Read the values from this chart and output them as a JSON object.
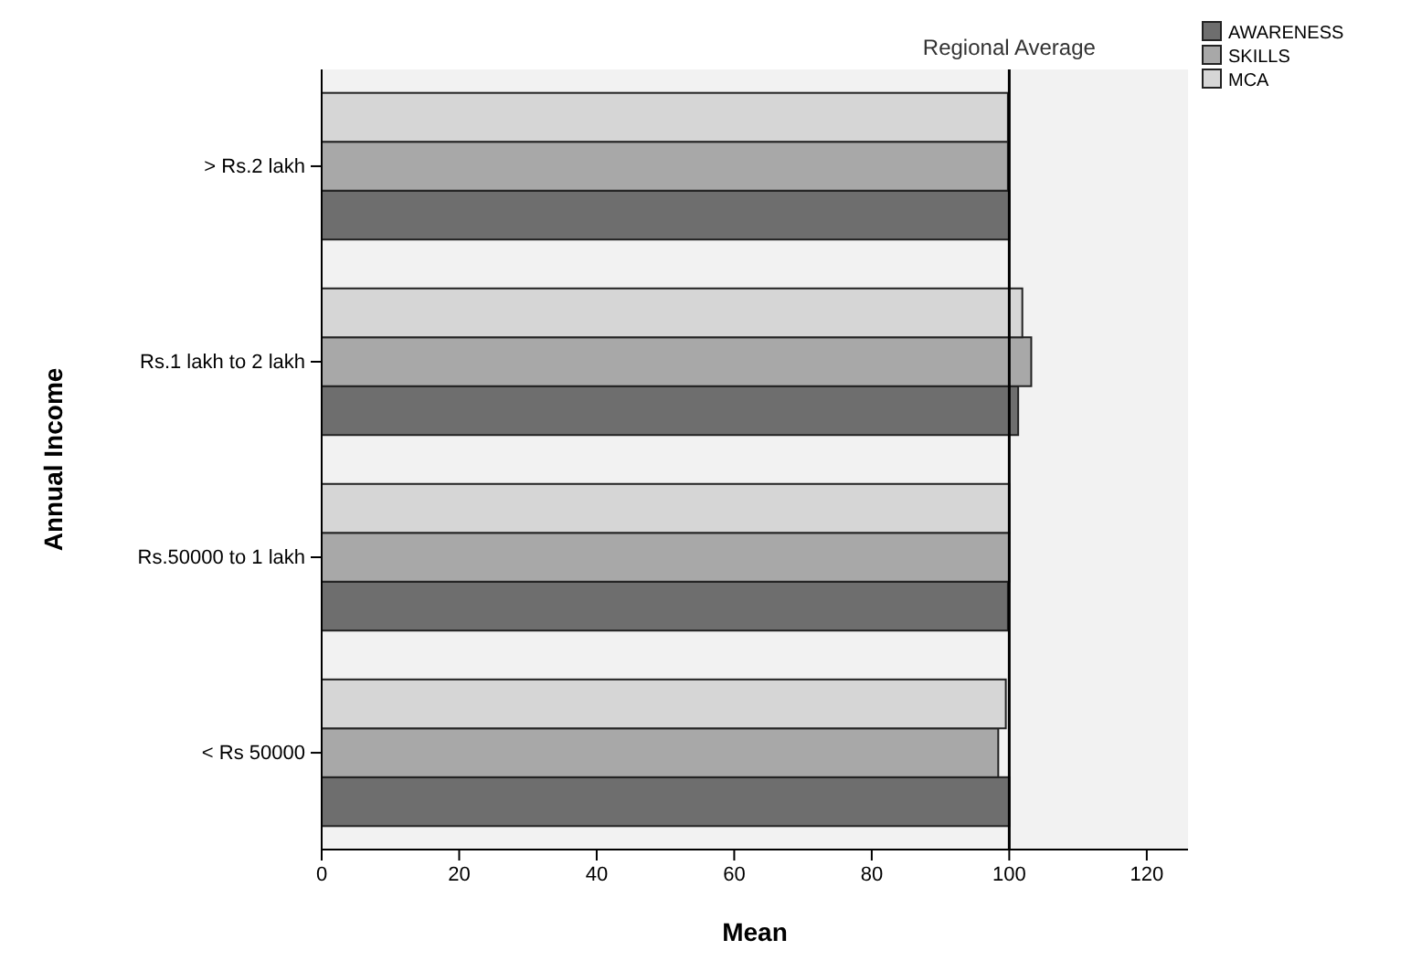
{
  "chart_data": {
    "type": "bar",
    "orientation": "horizontal",
    "xlabel": "Mean",
    "ylabel": "Annual Income",
    "categories": [
      "> Rs.2 lakh",
      "Rs.1 lakh to 2 lakh",
      "Rs.50000 to 1 lakh",
      "< Rs 50000"
    ],
    "series": [
      {
        "name": "AWARENESS",
        "color": "#6e6e6e",
        "values": [
          100,
          101.3,
          99.8,
          100
        ]
      },
      {
        "name": "SKILLS",
        "color": "#a8a8a8",
        "values": [
          99.8,
          103.2,
          100,
          98.4
        ]
      },
      {
        "name": "MCA",
        "color": "#d6d6d6",
        "values": [
          99.8,
          101.9,
          100,
          99.5
        ]
      }
    ],
    "xlim": [
      0,
      126
    ],
    "xticks": [
      0,
      20,
      40,
      60,
      80,
      100,
      120
    ],
    "ref_lines": [
      {
        "axis": "x",
        "value": 100,
        "label": "Regional Average"
      }
    ],
    "legend": "top right",
    "grid": false
  }
}
